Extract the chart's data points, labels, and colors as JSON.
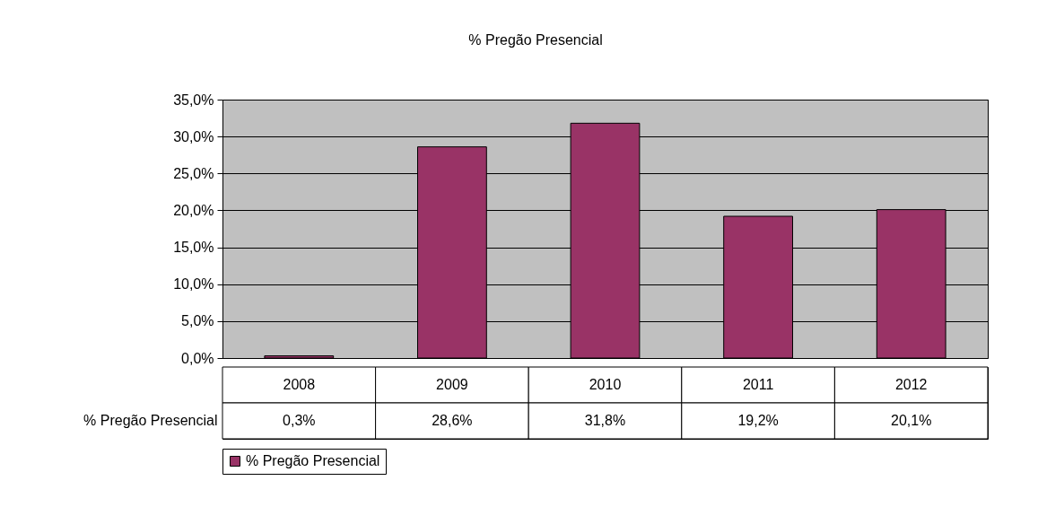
{
  "chart_data": {
    "type": "bar",
    "title": "% Pregão Presencial",
    "categories": [
      "2008",
      "2009",
      "2010",
      "2011",
      "2012"
    ],
    "series": [
      {
        "name": "% Pregão Presencial",
        "color": "#993366",
        "values": [
          0.3,
          28.6,
          31.8,
          19.2,
          20.1
        ],
        "value_labels": [
          "0,3%",
          "28,6%",
          "31,8%",
          "19,2%",
          "20,1%"
        ]
      }
    ],
    "ylim": [
      0,
      35
    ],
    "yticks": [
      {
        "value": 0,
        "label": "0,0%"
      },
      {
        "value": 5,
        "label": "5,0%"
      },
      {
        "value": 10,
        "label": "10,0%"
      },
      {
        "value": 15,
        "label": "15,0%"
      },
      {
        "value": 20,
        "label": "20,0%"
      },
      {
        "value": 25,
        "label": "25,0%"
      },
      {
        "value": 30,
        "label": "30,0%"
      },
      {
        "value": 35,
        "label": "35,0%"
      }
    ],
    "grid": "y",
    "legend": "bottom"
  }
}
